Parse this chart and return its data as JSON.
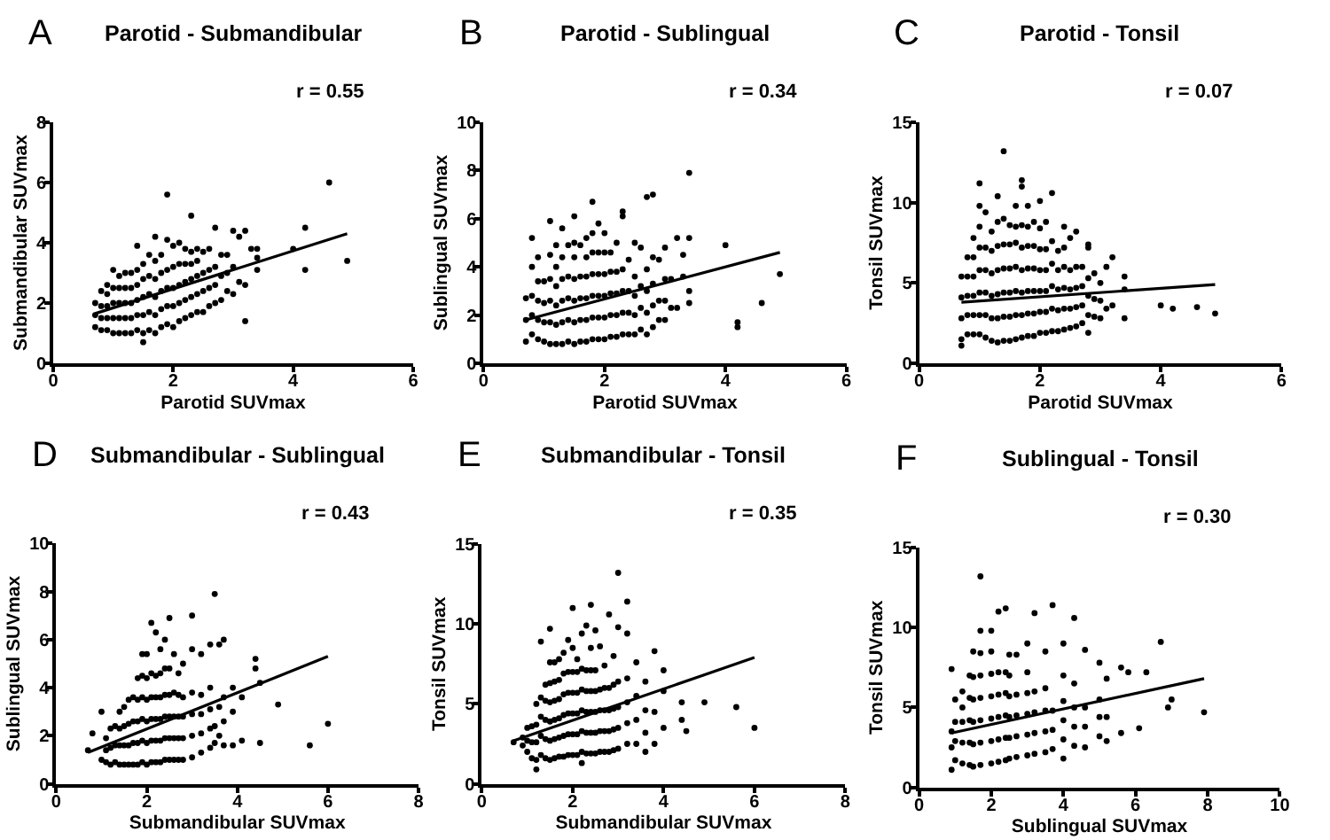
{
  "chart_data": [
    {
      "type": "scatter",
      "title": "Parotid - Submandibular",
      "xlabel": "Parotid SUVmax",
      "ylabel": "Submandibular SUVmax",
      "annotations": [
        "A",
        "r = 0.55"
      ],
      "xlim": [
        0,
        6
      ],
      "ylim": [
        0,
        8
      ],
      "xticks": [
        0,
        2,
        4,
        6
      ],
      "yticks": [
        0,
        2,
        4,
        6,
        8
      ],
      "series": [
        {
          "color": "#000000",
          "marker": "circle",
          "x": [
            0.7,
            0.7,
            0.7,
            0.8,
            0.8,
            0.8,
            0.8,
            0.9,
            0.9,
            0.9,
            0.9,
            0.9,
            1.0,
            1.0,
            1.0,
            1.0,
            1.0,
            1.1,
            1.1,
            1.1,
            1.1,
            1.1,
            1.2,
            1.2,
            1.2,
            1.2,
            1.2,
            1.3,
            1.3,
            1.3,
            1.3,
            1.3,
            1.4,
            1.4,
            1.4,
            1.4,
            1.4,
            1.4,
            1.5,
            1.5,
            1.5,
            1.5,
            1.5,
            1.5,
            1.6,
            1.6,
            1.6,
            1.6,
            1.6,
            1.7,
            1.7,
            1.7,
            1.7,
            1.7,
            1.7,
            1.8,
            1.8,
            1.8,
            1.8,
            1.8,
            1.9,
            1.9,
            1.9,
            1.9,
            1.9,
            1.9,
            2.0,
            2.0,
            2.0,
            2.0,
            2.0,
            2.1,
            2.1,
            2.1,
            2.1,
            2.1,
            2.2,
            2.2,
            2.2,
            2.2,
            2.2,
            2.3,
            2.3,
            2.3,
            2.3,
            2.3,
            2.3,
            2.4,
            2.4,
            2.4,
            2.4,
            2.4,
            2.5,
            2.5,
            2.5,
            2.5,
            2.6,
            2.6,
            2.6,
            2.6,
            2.7,
            2.7,
            2.7,
            2.7,
            2.8,
            2.8,
            2.8,
            2.9,
            2.9,
            2.9,
            3.0,
            3.0,
            3.0,
            3.1,
            3.1,
            3.2,
            3.2,
            3.2,
            3.3,
            3.4,
            3.4,
            3.4,
            4.0,
            4.2,
            4.2,
            4.6,
            4.9
          ],
          "values": [
            1.2,
            1.6,
            2.0,
            1.1,
            1.5,
            1.9,
            2.4,
            1.1,
            1.5,
            1.9,
            2.3,
            2.6,
            1.0,
            1.5,
            2.0,
            2.5,
            3.1,
            1.0,
            1.5,
            2.0,
            2.5,
            2.9,
            1.0,
            1.5,
            2.0,
            2.5,
            3.0,
            1.0,
            1.5,
            2.0,
            2.5,
            3.0,
            1.1,
            1.6,
            2.1,
            2.6,
            3.1,
            3.9,
            0.7,
            1.0,
            1.6,
            2.2,
            2.8,
            3.3,
            1.1,
            1.7,
            2.3,
            2.9,
            3.6,
            1.0,
            1.6,
            2.2,
            2.8,
            3.4,
            4.2,
            1.2,
            1.8,
            2.4,
            3.0,
            3.6,
            1.3,
            1.9,
            2.5,
            3.1,
            4.1,
            5.6,
            1.2,
            1.9,
            2.5,
            3.2,
            3.9,
            1.4,
            2.0,
            2.6,
            3.3,
            4.0,
            1.5,
            2.1,
            2.7,
            3.3,
            3.8,
            1.6,
            2.2,
            2.8,
            3.3,
            3.7,
            4.9,
            1.7,
            2.3,
            2.9,
            3.4,
            3.8,
            1.7,
            2.4,
            3.0,
            3.7,
            1.9,
            2.5,
            3.1,
            3.8,
            2.0,
            2.6,
            3.2,
            4.5,
            2.1,
            2.9,
            3.6,
            2.4,
            3.0,
            3.6,
            2.3,
            3.2,
            4.4,
            2.7,
            4.2,
            1.4,
            2.6,
            4.4,
            3.8,
            3.1,
            3.5,
            3.8,
            3.8,
            3.1,
            4.5,
            6.0,
            3.4
          ]
        },
        {
          "type": "line",
          "color": "#000000",
          "x": [
            0.7,
            4.9
          ],
          "values": [
            1.65,
            4.3
          ]
        }
      ]
    },
    {
      "type": "scatter",
      "title": "Parotid - Sublingual",
      "xlabel": "Parotid SUVmax",
      "ylabel": "Sublingual SUVmax",
      "annotations": [
        "B",
        "r = 0.34"
      ],
      "xlim": [
        0,
        6
      ],
      "ylim": [
        0,
        10
      ],
      "xticks": [
        0,
        2,
        4,
        6
      ],
      "yticks": [
        0,
        2,
        4,
        6,
        8,
        10
      ],
      "series": [
        {
          "color": "#000000",
          "marker": "circle",
          "x": [
            0.7,
            0.7,
            0.7,
            0.8,
            0.8,
            0.8,
            0.8,
            0.8,
            0.9,
            0.9,
            0.9,
            0.9,
            0.9,
            1.0,
            1.0,
            1.0,
            1.0,
            1.1,
            1.1,
            1.1,
            1.1,
            1.1,
            1.1,
            1.2,
            1.2,
            1.2,
            1.2,
            1.2,
            1.2,
            1.3,
            1.3,
            1.3,
            1.3,
            1.3,
            1.3,
            1.4,
            1.4,
            1.4,
            1.4,
            1.4,
            1.5,
            1.5,
            1.5,
            1.5,
            1.5,
            1.5,
            1.5,
            1.6,
            1.6,
            1.6,
            1.6,
            1.6,
            1.7,
            1.7,
            1.7,
            1.7,
            1.7,
            1.7,
            1.8,
            1.8,
            1.8,
            1.8,
            1.8,
            1.8,
            1.8,
            1.9,
            1.9,
            1.9,
            1.9,
            1.9,
            1.9,
            2.0,
            2.0,
            2.0,
            2.0,
            2.0,
            2.0,
            2.1,
            2.1,
            2.1,
            2.1,
            2.1,
            2.2,
            2.2,
            2.2,
            2.2,
            2.2,
            2.3,
            2.3,
            2.3,
            2.3,
            2.3,
            2.3,
            2.4,
            2.4,
            2.4,
            2.4,
            2.5,
            2.5,
            2.5,
            2.5,
            2.5,
            2.6,
            2.6,
            2.6,
            2.6,
            2.7,
            2.7,
            2.7,
            2.7,
            2.7,
            2.8,
            2.8,
            2.8,
            2.8,
            2.8,
            2.9,
            2.9,
            2.9,
            3.0,
            3.0,
            3.0,
            3.0,
            3.1,
            3.1,
            3.2,
            3.2,
            3.3,
            3.3,
            3.4,
            3.4,
            3.4,
            3.4,
            4.0,
            4.2,
            4.2,
            4.6,
            4.9
          ],
          "values": [
            0.9,
            1.8,
            2.7,
            1.2,
            2.0,
            2.8,
            4.0,
            5.2,
            1.0,
            1.8,
            2.6,
            3.4,
            4.4,
            0.9,
            1.7,
            2.5,
            3.4,
            0.8,
            1.7,
            2.6,
            3.5,
            4.5,
            5.9,
            0.8,
            1.6,
            2.4,
            3.2,
            4.0,
            4.9,
            0.8,
            1.7,
            2.6,
            3.5,
            4.4,
            5.6,
            0.9,
            1.8,
            2.7,
            3.6,
            4.9,
            0.8,
            1.7,
            2.6,
            3.5,
            4.4,
            5.0,
            6.1,
            0.9,
            1.8,
            2.7,
            3.6,
            4.9,
            0.9,
            1.8,
            2.7,
            3.6,
            4.4,
            5.2,
            1.0,
            1.9,
            2.8,
            3.7,
            4.6,
            5.4,
            6.7,
            1.0,
            1.9,
            2.8,
            3.7,
            4.6,
            5.8,
            1.0,
            1.9,
            2.8,
            3.7,
            4.6,
            5.4,
            1.1,
            2.0,
            2.9,
            3.8,
            4.6,
            1.1,
            2.0,
            2.9,
            3.8,
            5.0,
            1.2,
            2.1,
            3.0,
            3.9,
            6.1,
            6.3,
            1.2,
            2.1,
            3.0,
            4.3,
            1.2,
            2.0,
            2.8,
            3.6,
            5.0,
            1.4,
            2.3,
            3.2,
            4.8,
            1.2,
            2.1,
            3.0,
            3.9,
            6.9,
            1.5,
            2.4,
            3.3,
            4.4,
            7.0,
            1.8,
            2.6,
            4.3,
            1.8,
            2.6,
            3.5,
            4.8,
            2.3,
            3.5,
            2.3,
            5.2,
            3.6,
            4.5,
            2.5,
            3.0,
            5.2,
            7.9,
            4.9,
            1.5,
            1.7,
            2.5,
            3.7
          ]
        },
        {
          "type": "line",
          "color": "#000000",
          "x": [
            0.7,
            4.9
          ],
          "values": [
            1.8,
            4.6
          ]
        }
      ]
    },
    {
      "type": "scatter",
      "title": "Parotid - Tonsil",
      "xlabel": "Parotid SUVmax",
      "ylabel": "Tonsil SUVmax",
      "annotations": [
        "C",
        "r = 0.07"
      ],
      "xlim": [
        0,
        6
      ],
      "ylim": [
        0,
        15
      ],
      "xticks": [
        0,
        2,
        4,
        6
      ],
      "yticks": [
        0,
        5,
        10,
        15
      ],
      "series": [
        {
          "color": "#000000",
          "marker": "circle",
          "x": [
            0.7,
            0.7,
            0.7,
            0.7,
            0.7,
            0.8,
            0.8,
            0.8,
            0.8,
            0.8,
            0.9,
            0.9,
            0.9,
            0.9,
            0.9,
            0.9,
            1.0,
            1.0,
            1.0,
            1.0,
            1.0,
            1.0,
            1.0,
            1.0,
            1.1,
            1.1,
            1.1,
            1.1,
            1.1,
            1.1,
            1.2,
            1.2,
            1.2,
            1.2,
            1.2,
            1.2,
            1.3,
            1.3,
            1.3,
            1.3,
            1.3,
            1.3,
            1.3,
            1.4,
            1.4,
            1.4,
            1.4,
            1.4,
            1.4,
            1.4,
            1.5,
            1.5,
            1.5,
            1.5,
            1.5,
            1.5,
            1.6,
            1.6,
            1.6,
            1.6,
            1.6,
            1.6,
            1.6,
            1.7,
            1.7,
            1.7,
            1.7,
            1.7,
            1.7,
            1.7,
            1.7,
            1.8,
            1.8,
            1.8,
            1.8,
            1.8,
            1.8,
            1.8,
            1.9,
            1.9,
            1.9,
            1.9,
            1.9,
            1.9,
            2.0,
            2.0,
            2.0,
            2.0,
            2.0,
            2.0,
            2.0,
            2.1,
            2.1,
            2.1,
            2.1,
            2.1,
            2.1,
            2.2,
            2.2,
            2.2,
            2.2,
            2.2,
            2.2,
            2.3,
            2.3,
            2.3,
            2.3,
            2.3,
            2.4,
            2.4,
            2.4,
            2.4,
            2.4,
            2.4,
            2.5,
            2.5,
            2.5,
            2.5,
            2.5,
            2.6,
            2.6,
            2.6,
            2.6,
            2.6,
            2.7,
            2.7,
            2.7,
            2.7,
            2.8,
            2.8,
            2.8,
            2.8,
            2.8,
            2.8,
            2.9,
            2.9,
            2.9,
            3.0,
            3.0,
            3.0,
            3.1,
            3.1,
            3.2,
            3.2,
            3.4,
            3.4,
            3.4,
            4.0,
            4.2,
            4.6,
            4.9
          ],
          "values": [
            1.1,
            1.5,
            2.8,
            4.1,
            5.4,
            1.8,
            3.0,
            4.2,
            5.4,
            6.6,
            1.8,
            3.0,
            4.2,
            5.4,
            6.6,
            7.8,
            1.8,
            3.0,
            4.4,
            5.8,
            7.2,
            8.5,
            9.8,
            11.2,
            1.6,
            3.0,
            4.4,
            5.8,
            7.2,
            9.4,
            1.4,
            2.8,
            4.2,
            5.6,
            7.0,
            8.2,
            1.3,
            2.8,
            4.3,
            5.8,
            7.3,
            8.8,
            10.4,
            1.4,
            2.9,
            4.4,
            5.9,
            7.4,
            9.0,
            13.2,
            1.4,
            2.9,
            4.4,
            5.9,
            7.4,
            8.6,
            1.5,
            3.0,
            4.5,
            6.0,
            7.5,
            8.5,
            9.8,
            1.6,
            3.0,
            4.4,
            5.8,
            7.2,
            8.6,
            11.0,
            11.4,
            1.7,
            3.1,
            4.5,
            5.9,
            7.3,
            8.5,
            9.8,
            1.7,
            3.1,
            4.5,
            5.9,
            7.3,
            8.8,
            1.9,
            3.2,
            4.5,
            5.8,
            7.1,
            8.4,
            10.1,
            1.9,
            3.2,
            4.5,
            5.8,
            7.1,
            8.8,
            2.0,
            3.4,
            4.8,
            6.2,
            7.6,
            10.6,
            2.0,
            3.3,
            4.6,
            5.8,
            7.0,
            2.1,
            3.4,
            4.7,
            6.0,
            7.2,
            8.5,
            2.2,
            3.4,
            4.6,
            5.8,
            7.8,
            2.3,
            3.5,
            4.7,
            6.0,
            8.2,
            2.5,
            3.6,
            4.8,
            6.0,
            1.9,
            3.0,
            4.2,
            5.3,
            7.2,
            7.4,
            2.9,
            4.0,
            5.6,
            2.8,
            3.9,
            5.0,
            3.4,
            6.0,
            3.6,
            6.6,
            2.8,
            4.6,
            5.4,
            3.6,
            3.4,
            3.5,
            3.1
          ]
        },
        {
          "type": "line",
          "color": "#000000",
          "x": [
            0.7,
            4.9
          ],
          "values": [
            3.8,
            4.9
          ]
        }
      ]
    },
    {
      "type": "scatter",
      "title": "Submandibular - Sublingual",
      "xlabel": "Submandibular SUVmax",
      "ylabel": "Sublingual SUVmax",
      "annotations": [
        "D",
        "r = 0.43"
      ],
      "xlim": [
        0,
        8
      ],
      "ylim": [
        0,
        10
      ],
      "xticks": [
        0,
        2,
        4,
        6,
        8
      ],
      "yticks": [
        0,
        2,
        4,
        6,
        8,
        10
      ],
      "series": [
        {
          "color": "#000000",
          "marker": "circle",
          "x": [
            0.7,
            0.8,
            1.0,
            1.0,
            1.1,
            1.1,
            1.1,
            1.2,
            1.2,
            1.2,
            1.3,
            1.3,
            1.3,
            1.4,
            1.4,
            1.4,
            1.4,
            1.5,
            1.5,
            1.5,
            1.5,
            1.6,
            1.6,
            1.6,
            1.6,
            1.7,
            1.7,
            1.7,
            1.7,
            1.8,
            1.8,
            1.8,
            1.8,
            1.8,
            1.9,
            1.9,
            1.9,
            1.9,
            1.9,
            1.9,
            2.0,
            2.0,
            2.0,
            2.0,
            2.0,
            2.0,
            2.1,
            2.1,
            2.1,
            2.1,
            2.1,
            2.1,
            2.2,
            2.2,
            2.2,
            2.2,
            2.2,
            2.2,
            2.3,
            2.3,
            2.3,
            2.3,
            2.3,
            2.3,
            2.4,
            2.4,
            2.4,
            2.4,
            2.4,
            2.4,
            2.5,
            2.5,
            2.5,
            2.5,
            2.5,
            2.5,
            2.6,
            2.6,
            2.6,
            2.6,
            2.6,
            2.7,
            2.7,
            2.7,
            2.7,
            2.7,
            2.8,
            2.8,
            2.8,
            2.8,
            2.8,
            3.0,
            3.0,
            3.0,
            3.0,
            3.0,
            3.0,
            3.2,
            3.2,
            3.2,
            3.2,
            3.2,
            3.4,
            3.4,
            3.4,
            3.4,
            3.4,
            3.5,
            3.5,
            3.5,
            3.6,
            3.6,
            3.6,
            3.7,
            3.7,
            3.7,
            3.7,
            3.9,
            3.9,
            3.9,
            4.1,
            4.1,
            4.4,
            4.4,
            4.5,
            4.5,
            4.9,
            5.6,
            6.0
          ],
          "values": [
            1.4,
            2.1,
            1.0,
            3.0,
            0.9,
            1.4,
            1.9,
            0.8,
            1.5,
            2.3,
            0.9,
            1.6,
            2.4,
            0.8,
            1.6,
            2.3,
            3.0,
            0.8,
            1.6,
            2.4,
            3.2,
            0.8,
            1.6,
            2.5,
            3.5,
            0.8,
            1.7,
            2.6,
            3.6,
            0.8,
            1.7,
            2.6,
            3.5,
            4.4,
            0.9,
            1.8,
            2.7,
            3.6,
            4.5,
            5.4,
            0.8,
            1.7,
            2.6,
            3.5,
            4.4,
            5.4,
            0.9,
            1.8,
            2.7,
            3.6,
            4.6,
            6.7,
            0.9,
            1.8,
            2.7,
            3.6,
            4.5,
            6.3,
            0.9,
            1.8,
            2.7,
            3.6,
            4.6,
            5.6,
            1.0,
            1.9,
            2.8,
            3.7,
            4.8,
            6.0,
            1.0,
            1.9,
            2.8,
            3.7,
            4.8,
            6.9,
            1.0,
            1.9,
            2.8,
            3.8,
            5.4,
            1.0,
            1.9,
            2.8,
            3.7,
            4.6,
            1.0,
            1.9,
            2.8,
            3.6,
            5.0,
            1.1,
            2.0,
            2.9,
            3.8,
            5.6,
            7.0,
            1.3,
            2.1,
            2.9,
            3.7,
            5.4,
            1.5,
            2.3,
            3.1,
            4.0,
            5.8,
            1.7,
            2.4,
            7.9,
            2.0,
            3.2,
            5.8,
            1.6,
            2.6,
            3.6,
            6.0,
            1.6,
            3.0,
            4.0,
            1.8,
            3.6,
            4.8,
            5.2,
            1.7,
            4.2,
            3.3,
            1.6,
            2.5
          ]
        },
        {
          "type": "line",
          "color": "#000000",
          "x": [
            0.7,
            6.0
          ],
          "values": [
            1.3,
            5.3
          ]
        }
      ]
    },
    {
      "type": "scatter",
      "title": "Submandibular - Tonsil",
      "xlabel": "Submandibular SUVmax",
      "ylabel": "Tonsil SUVmax",
      "annotations": [
        "E",
        "r = 0.35"
      ],
      "xlim": [
        0,
        8
      ],
      "ylim": [
        0,
        15
      ],
      "xticks": [
        0,
        2,
        4,
        6,
        8
      ],
      "yticks": [
        0,
        5,
        10,
        15
      ],
      "series": [
        {
          "color": "#000000",
          "marker": "circle",
          "x": [
            0.7,
            0.9,
            0.9,
            1.0,
            1.0,
            1.0,
            1.1,
            1.1,
            1.1,
            1.2,
            1.2,
            1.2,
            1.2,
            1.2,
            1.3,
            1.3,
            1.3,
            1.3,
            1.3,
            1.4,
            1.4,
            1.4,
            1.4,
            1.4,
            1.5,
            1.5,
            1.5,
            1.5,
            1.5,
            1.5,
            1.5,
            1.6,
            1.6,
            1.6,
            1.6,
            1.6,
            1.6,
            1.7,
            1.7,
            1.7,
            1.7,
            1.7,
            1.7,
            1.8,
            1.8,
            1.8,
            1.8,
            1.8,
            1.8,
            1.9,
            1.9,
            1.9,
            1.9,
            1.9,
            1.9,
            2.0,
            2.0,
            2.0,
            2.0,
            2.0,
            2.0,
            2.0,
            2.1,
            2.1,
            2.1,
            2.1,
            2.1,
            2.1,
            2.2,
            2.2,
            2.2,
            2.2,
            2.2,
            2.2,
            2.2,
            2.3,
            2.3,
            2.3,
            2.3,
            2.3,
            2.3,
            2.4,
            2.4,
            2.4,
            2.4,
            2.4,
            2.4,
            2.4,
            2.5,
            2.5,
            2.5,
            2.5,
            2.5,
            2.5,
            2.6,
            2.6,
            2.6,
            2.6,
            2.6,
            2.7,
            2.7,
            2.7,
            2.7,
            2.7,
            2.8,
            2.8,
            2.8,
            2.8,
            2.8,
            2.9,
            2.9,
            2.9,
            2.9,
            2.9,
            3.0,
            3.0,
            3.0,
            3.0,
            3.0,
            3.0,
            3.2,
            3.2,
            3.2,
            3.2,
            3.2,
            3.2,
            3.4,
            3.4,
            3.4,
            3.4,
            3.6,
            3.6,
            3.6,
            3.6,
            3.8,
            3.8,
            3.8,
            4.0,
            4.0,
            4.0,
            4.4,
            4.4,
            4.5,
            4.9,
            5.6,
            6.0
          ],
          "values": [
            2.6,
            2.4,
            2.9,
            2.0,
            2.7,
            3.5,
            1.6,
            2.6,
            3.6,
            0.9,
            1.5,
            2.6,
            3.7,
            5.0,
            1.8,
            3.0,
            4.2,
            5.4,
            8.9,
            1.6,
            2.8,
            4.0,
            5.2,
            6.2,
            1.5,
            2.7,
            3.9,
            5.1,
            6.3,
            7.6,
            9.7,
            1.6,
            2.8,
            4.0,
            5.2,
            6.4,
            7.6,
            1.7,
            2.9,
            4.1,
            5.3,
            6.5,
            7.8,
            1.7,
            3.0,
            4.3,
            5.6,
            6.9,
            8.2,
            1.8,
            3.1,
            4.4,
            5.7,
            7.0,
            9.0,
            1.8,
            3.1,
            4.4,
            5.7,
            7.0,
            8.5,
            11.0,
            1.8,
            3.1,
            4.4,
            5.7,
            7.0,
            7.8,
            1.3,
            2.0,
            3.3,
            4.6,
            5.9,
            7.2,
            9.4,
            1.9,
            3.2,
            4.5,
            5.8,
            7.1,
            9.9,
            1.9,
            3.2,
            4.5,
            5.8,
            7.1,
            8.5,
            11.2,
            1.9,
            3.2,
            4.5,
            5.8,
            7.1,
            9.6,
            2.0,
            3.3,
            4.6,
            5.9,
            8.6,
            2.0,
            3.3,
            4.6,
            6.0,
            7.4,
            2.0,
            3.3,
            4.6,
            6.0,
            10.6,
            2.1,
            3.4,
            4.7,
            6.2,
            8.0,
            2.2,
            3.5,
            4.8,
            6.4,
            9.8,
            13.2,
            2.5,
            3.8,
            5.1,
            6.6,
            9.4,
            11.4,
            2.5,
            4.0,
            5.5,
            7.6,
            2.0,
            3.2,
            4.6,
            6.4,
            2.5,
            4.5,
            8.3,
            3.5,
            5.8,
            7.1,
            4.0,
            5.1,
            3.3,
            5.1,
            4.8,
            3.5
          ]
        },
        {
          "type": "line",
          "color": "#000000",
          "x": [
            0.7,
            6.0
          ],
          "values": [
            2.7,
            7.9
          ]
        }
      ]
    },
    {
      "type": "scatter",
      "title": "Sublingual - Tonsil",
      "xlabel": "Sublingual SUVmax",
      "ylabel": "Tonsil SUVmax",
      "annotations": [
        "F",
        "r = 0.30"
      ],
      "xlim": [
        0,
        10
      ],
      "ylim": [
        0,
        15
      ],
      "xticks": [
        0,
        2,
        4,
        6,
        8,
        10
      ],
      "yticks": [
        0,
        5,
        10,
        15
      ],
      "series": [
        {
          "color": "#000000",
          "marker": "circle",
          "x": [
            0.9,
            0.9,
            0.9,
            0.9,
            1.0,
            1.0,
            1.0,
            1.0,
            1.2,
            1.2,
            1.2,
            1.2,
            1.2,
            1.4,
            1.4,
            1.4,
            1.4,
            1.4,
            1.5,
            1.5,
            1.5,
            1.5,
            1.5,
            1.5,
            1.7,
            1.7,
            1.7,
            1.7,
            1.7,
            1.7,
            1.7,
            1.7,
            2.0,
            2.0,
            2.0,
            2.0,
            2.0,
            2.0,
            2.0,
            2.2,
            2.2,
            2.2,
            2.2,
            2.2,
            2.2,
            2.4,
            2.4,
            2.4,
            2.4,
            2.4,
            2.4,
            2.5,
            2.5,
            2.5,
            2.5,
            2.5,
            2.5,
            2.7,
            2.7,
            2.7,
            2.7,
            2.7,
            3.0,
            3.0,
            3.0,
            3.0,
            3.0,
            3.0,
            3.2,
            3.2,
            3.2,
            3.2,
            3.2,
            3.5,
            3.5,
            3.5,
            3.5,
            3.5,
            3.7,
            3.7,
            3.7,
            3.7,
            4.0,
            4.0,
            4.0,
            4.0,
            4.0,
            4.0,
            4.3,
            4.3,
            4.3,
            4.3,
            4.3,
            4.6,
            4.6,
            4.6,
            4.6,
            5.0,
            5.0,
            5.0,
            5.0,
            5.2,
            5.2,
            5.2,
            5.6,
            5.6,
            5.8,
            6.1,
            6.3,
            6.7,
            6.9,
            7.0,
            7.9
          ],
          "values": [
            1.1,
            2.5,
            3.5,
            7.4,
            1.7,
            2.9,
            4.1,
            5.5,
            1.5,
            2.8,
            4.1,
            5.0,
            6.0,
            1.4,
            2.8,
            4.2,
            5.6,
            7.0,
            1.3,
            2.7,
            4.1,
            5.5,
            6.9,
            8.5,
            1.4,
            2.8,
            4.2,
            5.6,
            7.0,
            8.4,
            9.8,
            13.2,
            1.5,
            2.9,
            4.3,
            5.7,
            7.1,
            8.5,
            9.8,
            1.6,
            3.0,
            4.4,
            5.8,
            7.2,
            11.0,
            1.7,
            3.1,
            4.5,
            5.9,
            7.2,
            11.2,
            1.8,
            3.1,
            4.4,
            5.7,
            7.0,
            8.3,
            1.9,
            3.2,
            4.5,
            5.8,
            8.3,
            2.0,
            3.3,
            4.6,
            5.9,
            7.2,
            9.0,
            2.1,
            3.4,
            4.7,
            6.0,
            10.9,
            2.2,
            3.5,
            4.8,
            6.2,
            8.5,
            2.4,
            3.6,
            4.8,
            11.4,
            1.8,
            3.0,
            4.2,
            5.4,
            7.0,
            9.0,
            2.6,
            3.8,
            5.0,
            6.5,
            10.6,
            2.5,
            3.8,
            5.0,
            8.6,
            3.2,
            4.4,
            5.5,
            7.8,
            2.9,
            4.4,
            6.8,
            3.4,
            7.5,
            7.2,
            3.7,
            7.2,
            9.1,
            5.0,
            5.5,
            4.7
          ]
        },
        {
          "type": "line",
          "color": "#000000",
          "x": [
            0.9,
            7.9
          ],
          "values": [
            3.4,
            6.8
          ]
        }
      ]
    }
  ]
}
